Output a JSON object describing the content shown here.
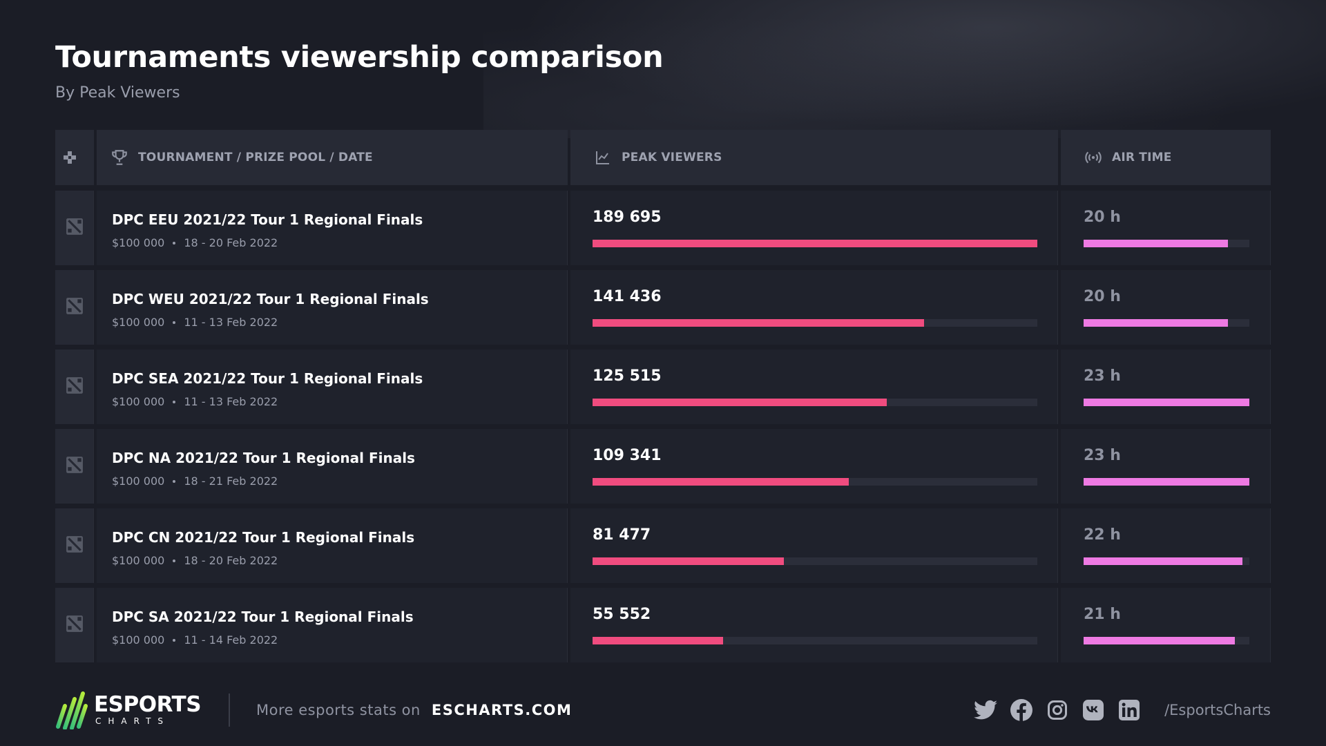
{
  "title": "Tournaments viewership comparison",
  "subtitle": "By Peak Viewers",
  "columns": {
    "tournament": "TOURNAMENT / PRIZE POOL / DATE",
    "peak": "PEAK VIEWERS",
    "air": "AIR TIME"
  },
  "colors": {
    "peak_bar": "#f04c7f",
    "air_bar": "#ee7ae3",
    "background": "#1b1d26"
  },
  "chart_data": {
    "type": "bar",
    "categories": [
      "DPC EEU 2021/22 Tour 1 Regional Finals",
      "DPC WEU 2021/22 Tour 1 Regional Finals",
      "DPC SEA 2021/22 Tour 1 Regional Finals",
      "DPC NA 2021/22 Tour 1 Regional Finals",
      "DPC CN 2021/22 Tour 1 Regional Finals",
      "DPC SA 2021/22 Tour 1 Regional Finals"
    ],
    "series": [
      {
        "name": "PEAK VIEWERS",
        "values": [
          189695,
          141436,
          125515,
          109341,
          81477,
          55552
        ]
      },
      {
        "name": "AIR TIME",
        "values": [
          20,
          20,
          23,
          23,
          22,
          21
        ]
      }
    ]
  },
  "rows": [
    {
      "name": "DPC EEU 2021/22 Tour 1 Regional Finals",
      "prize": "$100 000",
      "date": "18 - 20 Feb 2022",
      "peak_label": "189 695",
      "peak": 189695,
      "air_label": "20 h",
      "air": 20
    },
    {
      "name": "DPC WEU 2021/22 Tour 1 Regional Finals",
      "prize": "$100 000",
      "date": "11 - 13 Feb 2022",
      "peak_label": "141 436",
      "peak": 141436,
      "air_label": "20 h",
      "air": 20
    },
    {
      "name": "DPC SEA 2021/22 Tour 1 Regional Finals",
      "prize": "$100 000",
      "date": "11 - 13 Feb 2022",
      "peak_label": "125 515",
      "peak": 125515,
      "air_label": "23 h",
      "air": 23
    },
    {
      "name": "DPC NA 2021/22 Tour 1 Regional Finals",
      "prize": "$100 000",
      "date": "18 - 21 Feb 2022",
      "peak_label": "109 341",
      "peak": 109341,
      "air_label": "23 h",
      "air": 23
    },
    {
      "name": "DPC CN 2021/22 Tour 1 Regional Finals",
      "prize": "$100 000",
      "date": "18 - 20 Feb 2022",
      "peak_label": "81 477",
      "peak": 81477,
      "air_label": "22 h",
      "air": 22
    },
    {
      "name": "DPC SA 2021/22 Tour 1 Regional Finals",
      "prize": "$100 000",
      "date": "11 - 14 Feb 2022",
      "peak_label": "55 552",
      "peak": 55552,
      "air_label": "21 h",
      "air": 21
    }
  ],
  "footer": {
    "logo_top": "ESPORTS",
    "logo_bottom": "CHARTS",
    "more": "More esports stats on",
    "site": "ESCHARTS.COM",
    "handle": "/EsportsCharts",
    "socials": [
      "twitter-icon",
      "facebook-icon",
      "instagram-icon",
      "vk-icon",
      "linkedin-icon"
    ]
  }
}
